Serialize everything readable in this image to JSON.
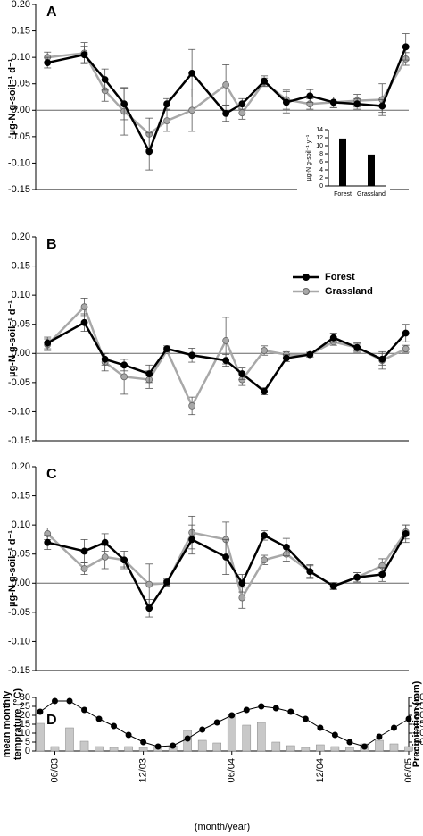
{
  "chart_data": [
    {
      "type": "line",
      "title": "A",
      "ylabel": "µg-N g-soil⁻¹ d⁻¹",
      "x": [
        -0.5,
        2,
        3.4,
        4.7,
        6.4,
        7.6,
        9.3,
        11.6,
        12.7,
        14.2,
        15.7,
        17.3,
        18.9,
        20.5,
        22.2,
        23.8
      ],
      "xlim": [
        -1.3,
        24
      ],
      "ylim": [
        -0.15,
        0.2
      ],
      "yticks": [
        {
          "value": 0.2,
          "label": "0.20"
        },
        {
          "value": 0.15,
          "label": "0.15"
        },
        {
          "value": 0.1,
          "label": "0.10"
        },
        {
          "value": 0.05,
          "label": "0.05"
        },
        {
          "value": 0,
          "label": "0.00"
        },
        {
          "value": -0.05,
          "label": "-0.05"
        },
        {
          "value": -0.1,
          "label": "-0.10"
        },
        {
          "value": -0.15,
          "label": "-0.15"
        }
      ],
      "series": [
        {
          "color": "#000000",
          "values": [
            0.09,
            0.105,
            0.058,
            0.012,
            -0.078,
            0.012,
            0.07,
            -0.006,
            0.012,
            0.055,
            0.015,
            0.027,
            0.015,
            0.012,
            0.008,
            0.12
          ],
          "errors": [
            0.01,
            0.015,
            0.02,
            0.03,
            0.035,
            0.01,
            0.045,
            0.015,
            0.01,
            0.01,
            0.02,
            0.012,
            0.01,
            0.01,
            0.012,
            0.025
          ]
        },
        {
          "color": "#a8a8a8",
          "values": [
            0.1,
            0.108,
            0.037,
            -0.002,
            -0.045,
            -0.02,
            0.0,
            0.048,
            -0.005,
            0.053,
            0.02,
            0.012,
            0.015,
            0.018,
            0.02,
            0.097
          ],
          "errors": [
            0.01,
            0.02,
            0.02,
            0.045,
            0.03,
            0.02,
            0.04,
            0.038,
            0.012,
            0.008,
            0.018,
            0.01,
            0.01,
            0.012,
            0.03,
            0.012
          ]
        }
      ]
    },
    {
      "type": "bar",
      "ylabel": "µg-N g-soil⁻¹ y⁻¹",
      "categories": [
        "Forest",
        "Grassland"
      ],
      "values": [
        11.8,
        7.8
      ],
      "color": "#000000",
      "ylim": [
        0,
        14
      ],
      "yticks": [
        0,
        2,
        4,
        6,
        8,
        10,
        12,
        14
      ]
    },
    {
      "type": "line",
      "title": "B",
      "ylabel": "µg-N g-soil⁻¹ d⁻¹",
      "legend": "upper right",
      "x": [
        -0.5,
        2,
        3.4,
        4.7,
        6.4,
        7.6,
        9.3,
        11.6,
        12.7,
        14.2,
        15.7,
        17.3,
        18.9,
        20.5,
        22.2,
        23.8
      ],
      "xlim": [
        -1.3,
        24
      ],
      "ylim": [
        -0.15,
        0.2
      ],
      "yticks": [
        {
          "value": 0.2,
          "label": "0.20"
        },
        {
          "value": 0.15,
          "label": "0.15"
        },
        {
          "value": 0.1,
          "label": "0.10"
        },
        {
          "value": 0.05,
          "label": "0.05"
        },
        {
          "value": 0,
          "label": "0.00"
        },
        {
          "value": -0.05,
          "label": "-0.05"
        },
        {
          "value": -0.1,
          "label": "-0.10"
        },
        {
          "value": -0.15,
          "label": "-0.15"
        }
      ],
      "series": [
        {
          "name": "Forest",
          "color": "#000000",
          "values": [
            0.018,
            0.053,
            -0.01,
            -0.02,
            -0.035,
            0.008,
            -0.003,
            -0.012,
            -0.035,
            -0.065,
            -0.008,
            -0.002,
            0.027,
            0.01,
            -0.01,
            0.035
          ],
          "errors": [
            0.01,
            0.015,
            0.01,
            0.01,
            0.015,
            0.005,
            0.012,
            0.01,
            0.01,
            0.006,
            0.006,
            0.004,
            0.008,
            0.008,
            0.01,
            0.015
          ]
        },
        {
          "name": "Grassland",
          "color": "#a8a8a8",
          "values": [
            0.015,
            0.08,
            -0.015,
            -0.04,
            -0.045,
            0.005,
            -0.09,
            0.022,
            -0.045,
            0.005,
            -0.002,
            -0.002,
            0.02,
            0.01,
            -0.012,
            0.008
          ],
          "errors": [
            0.01,
            0.015,
            0.015,
            0.03,
            0.015,
            0.005,
            0.015,
            0.04,
            0.01,
            0.008,
            0.005,
            0.004,
            0.006,
            0.006,
            0.015,
            0.006
          ]
        }
      ]
    },
    {
      "type": "line",
      "title": "C",
      "ylabel": "µg-N g-soil⁻¹ d⁻¹",
      "x": [
        -0.5,
        2,
        3.4,
        4.7,
        6.4,
        7.6,
        9.3,
        11.6,
        12.7,
        14.2,
        15.7,
        17.3,
        18.9,
        20.5,
        22.2,
        23.8
      ],
      "xlim": [
        -1.3,
        24
      ],
      "ylim": [
        -0.15,
        0.2
      ],
      "yticks": [
        {
          "value": 0.2,
          "label": "0.20"
        },
        {
          "value": 0.15,
          "label": "0.15"
        },
        {
          "value": 0.1,
          "label": "0.10"
        },
        {
          "value": 0.05,
          "label": "0.05"
        },
        {
          "value": 0,
          "label": "0.00"
        },
        {
          "value": -0.05,
          "label": "-0.05"
        },
        {
          "value": -0.1,
          "label": "-0.10"
        },
        {
          "value": -0.15,
          "label": "-0.15"
        }
      ],
      "series": [
        {
          "color": "#000000",
          "values": [
            0.07,
            0.055,
            0.07,
            0.04,
            -0.043,
            0.002,
            0.075,
            0.045,
            0.0,
            0.082,
            0.062,
            0.02,
            -0.005,
            0.01,
            0.015,
            0.085
          ],
          "errors": [
            0.012,
            0.02,
            0.015,
            0.015,
            0.015,
            0.005,
            0.025,
            0.03,
            0.015,
            0.008,
            0.015,
            0.01,
            0.005,
            0.008,
            0.012,
            0.015
          ]
        },
        {
          "color": "#a8a8a8",
          "values": [
            0.085,
            0.025,
            0.045,
            0.04,
            -0.002,
            0.0,
            0.087,
            0.075,
            -0.025,
            0.04,
            0.05,
            0.02,
            -0.005,
            0.01,
            0.03,
            0.088
          ],
          "errors": [
            0.01,
            0.01,
            0.02,
            0.012,
            0.035,
            0.005,
            0.028,
            0.03,
            0.018,
            0.008,
            0.012,
            0.012,
            0.006,
            0.008,
            0.012,
            0.012
          ]
        }
      ]
    },
    {
      "type": "combo",
      "title": "D",
      "ylabel": [
        "mean monthly",
        "temprature (°C)"
      ],
      "y2label": "Precipitation (mm)",
      "xlabel": "(month/year)",
      "x": [
        -1,
        0,
        1,
        2,
        3,
        4,
        5,
        6,
        7,
        8,
        9,
        10,
        11,
        12,
        13,
        14,
        15,
        16,
        17,
        18,
        19,
        20,
        21,
        22,
        23,
        24
      ],
      "xlim": [
        -1.3,
        24
      ],
      "xticks": [
        {
          "value": 0,
          "label": "06/03"
        },
        {
          "value": 6,
          "label": "12/03"
        },
        {
          "value": 12,
          "label": "06/04"
        },
        {
          "value": 18,
          "label": "12/04"
        },
        {
          "value": 24,
          "label": "06/05"
        }
      ],
      "ylim": [
        0,
        30
      ],
      "yticks": [
        0,
        5,
        10,
        15,
        20,
        25,
        30
      ],
      "y2lim": [
        0,
        300
      ],
      "y2ticks": [
        0,
        50,
        100,
        150,
        200,
        250,
        300
      ],
      "series": [
        {
          "type": "line",
          "axis": "y",
          "color": "#000000",
          "values": [
            22,
            28,
            28,
            23,
            18,
            14,
            9,
            5,
            2.5,
            3,
            7,
            12,
            16,
            20,
            23,
            25,
            24,
            22,
            18,
            13,
            9,
            5,
            2.5,
            8,
            13,
            18
          ]
        },
        {
          "type": "bar",
          "axis": "y2",
          "color": "#c8c8c8",
          "values": [
            155,
            25,
            130,
            55,
            25,
            20,
            25,
            20,
            25,
            30,
            115,
            60,
            45,
            205,
            145,
            160,
            50,
            30,
            20,
            35,
            25,
            20,
            40,
            60,
            40,
            25
          ]
        }
      ]
    }
  ]
}
